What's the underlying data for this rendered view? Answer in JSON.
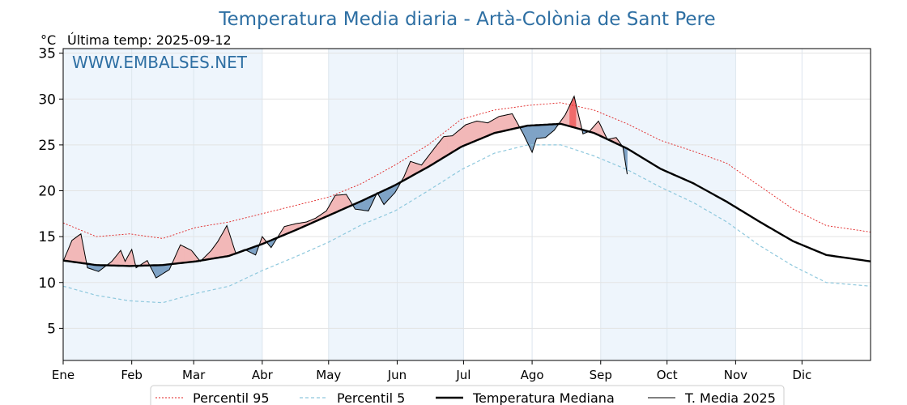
{
  "page": {
    "title": "Temperatura Media diaria - Artà-Colònia de Sant Pere",
    "unit": "°C",
    "last_update": "Última temp: 2025-09-12",
    "watermark": "WWW.EMBALSES.NET"
  },
  "colors": {
    "title": "#2e6fa3",
    "p95": "#e02020",
    "p5": "#8ec8dd",
    "median": "#000000",
    "year": "#000000",
    "above_light": "#f2b8b8",
    "above_strong": "#f06a6a",
    "below": "#7fa3c6",
    "band": "#eef5fc"
  },
  "chart_data": {
    "type": "line",
    "xlabel": "",
    "ylabel": "°C",
    "ylim": [
      1.5,
      35.5
    ],
    "yticks": [
      5,
      10,
      15,
      20,
      25,
      30
    ],
    "x_domain_days": [
      0,
      365
    ],
    "month_ticks": [
      "Ene",
      "Feb",
      "Mar",
      "Abr",
      "May",
      "Jun",
      "Jul",
      "Ago",
      "Sep",
      "Oct",
      "Nov",
      "Dic"
    ],
    "month_start_day": [
      0,
      31,
      59,
      90,
      120,
      151,
      181,
      212,
      243,
      273,
      304,
      334
    ],
    "grid": true,
    "legend_position": "bottom-center",
    "series": [
      {
        "name": "Percentil 95",
        "style": "dotted-red",
        "keypoints": [
          [
            0,
            16.5
          ],
          [
            15,
            15.0
          ],
          [
            30,
            15.3
          ],
          [
            45,
            14.8
          ],
          [
            60,
            16.0
          ],
          [
            75,
            16.6
          ],
          [
            90,
            17.5
          ],
          [
            105,
            18.4
          ],
          [
            120,
            19.3
          ],
          [
            135,
            20.8
          ],
          [
            150,
            22.8
          ],
          [
            165,
            25.0
          ],
          [
            180,
            27.8
          ],
          [
            195,
            28.8
          ],
          [
            210,
            29.3
          ],
          [
            225,
            29.6
          ],
          [
            240,
            28.8
          ],
          [
            255,
            27.3
          ],
          [
            270,
            25.5
          ],
          [
            285,
            24.3
          ],
          [
            300,
            23.0
          ],
          [
            315,
            20.5
          ],
          [
            330,
            18.0
          ],
          [
            345,
            16.2
          ],
          [
            365,
            15.5
          ]
        ]
      },
      {
        "name": "Percentil 5",
        "style": "dashed-lightblue",
        "keypoints": [
          [
            0,
            9.6
          ],
          [
            15,
            8.6
          ],
          [
            30,
            8.0
          ],
          [
            45,
            7.8
          ],
          [
            60,
            8.8
          ],
          [
            75,
            9.6
          ],
          [
            90,
            11.3
          ],
          [
            105,
            12.8
          ],
          [
            120,
            14.4
          ],
          [
            135,
            16.3
          ],
          [
            150,
            17.8
          ],
          [
            165,
            20.0
          ],
          [
            180,
            22.3
          ],
          [
            195,
            24.1
          ],
          [
            210,
            25.0
          ],
          [
            225,
            25.0
          ],
          [
            240,
            23.8
          ],
          [
            255,
            22.3
          ],
          [
            270,
            20.4
          ],
          [
            285,
            18.7
          ],
          [
            300,
            16.6
          ],
          [
            315,
            14.0
          ],
          [
            330,
            11.8
          ],
          [
            345,
            10.0
          ],
          [
            365,
            9.6
          ]
        ]
      },
      {
        "name": "Temperatura Mediana",
        "style": "bold-black",
        "keypoints": [
          [
            0,
            12.4
          ],
          [
            15,
            11.9
          ],
          [
            30,
            11.8
          ],
          [
            45,
            11.9
          ],
          [
            60,
            12.3
          ],
          [
            75,
            12.9
          ],
          [
            90,
            14.2
          ],
          [
            105,
            15.7
          ],
          [
            120,
            17.3
          ],
          [
            135,
            18.9
          ],
          [
            150,
            20.6
          ],
          [
            165,
            22.6
          ],
          [
            180,
            24.8
          ],
          [
            195,
            26.3
          ],
          [
            210,
            27.1
          ],
          [
            225,
            27.3
          ],
          [
            240,
            26.3
          ],
          [
            255,
            24.6
          ],
          [
            270,
            22.4
          ],
          [
            285,
            20.8
          ],
          [
            300,
            18.8
          ],
          [
            315,
            16.6
          ],
          [
            330,
            14.5
          ],
          [
            345,
            13.0
          ],
          [
            365,
            12.3
          ]
        ]
      },
      {
        "name": "T. Media 2025",
        "style": "thin-black",
        "keypoints": [
          [
            0,
            12.3
          ],
          [
            4,
            14.6
          ],
          [
            8,
            15.3
          ],
          [
            11,
            11.6
          ],
          [
            16,
            11.2
          ],
          [
            22,
            12.3
          ],
          [
            26,
            13.5
          ],
          [
            28,
            12.3
          ],
          [
            31,
            13.6
          ],
          [
            33,
            11.6
          ],
          [
            38,
            12.4
          ],
          [
            42,
            10.5
          ],
          [
            48,
            11.4
          ],
          [
            53,
            14.1
          ],
          [
            58,
            13.5
          ],
          [
            62,
            12.3
          ],
          [
            67,
            13.5
          ],
          [
            70,
            14.5
          ],
          [
            74,
            16.2
          ],
          [
            78,
            13.2
          ],
          [
            82,
            13.6
          ],
          [
            87,
            13.0
          ],
          [
            90,
            15.0
          ],
          [
            94,
            13.8
          ],
          [
            100,
            16.1
          ],
          [
            105,
            16.4
          ],
          [
            110,
            16.6
          ],
          [
            114,
            17.0
          ],
          [
            119,
            17.8
          ],
          [
            123,
            19.5
          ],
          [
            128,
            19.6
          ],
          [
            132,
            18.0
          ],
          [
            138,
            17.8
          ],
          [
            142,
            19.8
          ],
          [
            145,
            18.5
          ],
          [
            150,
            19.8
          ],
          [
            154,
            21.5
          ],
          [
            157,
            23.2
          ],
          [
            162,
            22.8
          ],
          [
            168,
            24.7
          ],
          [
            172,
            25.9
          ],
          [
            176,
            26.0
          ],
          [
            182,
            27.2
          ],
          [
            187,
            27.6
          ],
          [
            192,
            27.4
          ],
          [
            197,
            28.1
          ],
          [
            203,
            28.4
          ],
          [
            208,
            26.2
          ],
          [
            212,
            24.2
          ],
          [
            214,
            25.7
          ],
          [
            218,
            25.8
          ],
          [
            222,
            26.6
          ],
          [
            227,
            28.3
          ],
          [
            231,
            30.3
          ],
          [
            235,
            26.2
          ],
          [
            238,
            26.5
          ],
          [
            242,
            27.6
          ],
          [
            246,
            25.6
          ],
          [
            250,
            25.8
          ],
          [
            253,
            24.8
          ],
          [
            255,
            21.8
          ]
        ]
      }
    ]
  },
  "legend": {
    "items": [
      {
        "label": "Percentil 95",
        "key": "p95"
      },
      {
        "label": "Percentil 5",
        "key": "p5"
      },
      {
        "label": "Temperatura Mediana",
        "key": "median"
      },
      {
        "label": "T. Media 2025",
        "key": "year"
      }
    ]
  }
}
